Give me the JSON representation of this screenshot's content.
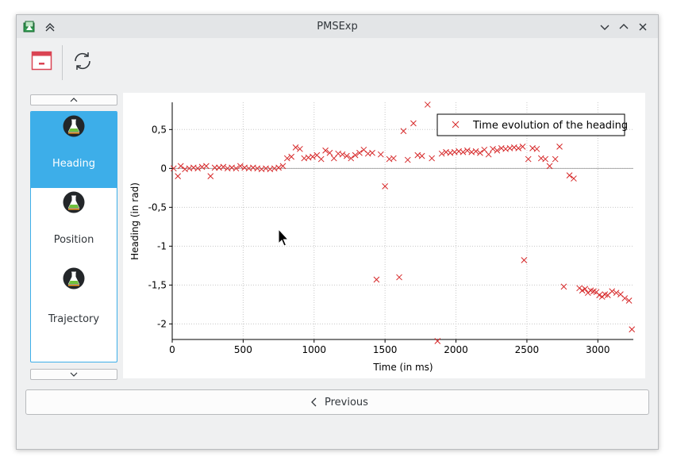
{
  "window": {
    "title": "PMSExp"
  },
  "toolbar": {
    "tools": [
      {
        "icon": "close-window-icon"
      },
      {
        "icon": "refresh-icon"
      }
    ]
  },
  "sidebar": {
    "items": [
      {
        "label": "Heading",
        "icon": "flask-icon",
        "active": true
      },
      {
        "label": "Position",
        "icon": "flask-icon",
        "active": false
      },
      {
        "label": "Trajectory",
        "icon": "flask-icon",
        "active": false
      }
    ]
  },
  "nav": {
    "previous_label": "Previous"
  },
  "colors": {
    "accent": "#3daee9",
    "series": "#d62728"
  },
  "chart_data": {
    "type": "scatter",
    "title": "",
    "xlabel": "Time (in ms)",
    "ylabel": "Heading (in rad)",
    "xlim": [
      0,
      3250
    ],
    "ylim": [
      -2.2,
      0.85
    ],
    "xticks": [
      "0",
      "500",
      "1000",
      "1500",
      "2000",
      "2500",
      "3000"
    ],
    "yticks": [
      "0,5",
      "0",
      "-0,5",
      "-1",
      "-1,5",
      "-2"
    ],
    "grid": true,
    "legend_position": "top-right",
    "series": [
      {
        "name": "Time evolution of the heading",
        "marker": "x",
        "points": [
          [
            10,
            0.0
          ],
          [
            40,
            -0.1
          ],
          [
            60,
            0.03
          ],
          [
            90,
            -0.01
          ],
          [
            120,
            0.0
          ],
          [
            150,
            0.01
          ],
          [
            180,
            0.0
          ],
          [
            210,
            0.02
          ],
          [
            240,
            0.03
          ],
          [
            270,
            -0.1
          ],
          [
            300,
            0.01
          ],
          [
            330,
            0.01
          ],
          [
            360,
            0.02
          ],
          [
            390,
            0.0
          ],
          [
            420,
            0.01
          ],
          [
            450,
            0.0
          ],
          [
            480,
            0.03
          ],
          [
            510,
            0.01
          ],
          [
            540,
            0.0
          ],
          [
            570,
            0.01
          ],
          [
            600,
            0.0
          ],
          [
            630,
            -0.01
          ],
          [
            660,
            0.0
          ],
          [
            690,
            -0.01
          ],
          [
            720,
            0.0
          ],
          [
            750,
            0.01
          ],
          [
            780,
            0.03
          ],
          [
            810,
            0.13
          ],
          [
            840,
            0.15
          ],
          [
            870,
            0.27
          ],
          [
            900,
            0.25
          ],
          [
            930,
            0.13
          ],
          [
            960,
            0.14
          ],
          [
            990,
            0.15
          ],
          [
            1020,
            0.17
          ],
          [
            1050,
            0.12
          ],
          [
            1080,
            0.23
          ],
          [
            1110,
            0.2
          ],
          [
            1140,
            0.13
          ],
          [
            1170,
            0.19
          ],
          [
            1200,
            0.18
          ],
          [
            1230,
            0.16
          ],
          [
            1260,
            0.13
          ],
          [
            1290,
            0.17
          ],
          [
            1320,
            0.2
          ],
          [
            1350,
            0.24
          ],
          [
            1380,
            0.19
          ],
          [
            1410,
            0.2
          ],
          [
            1440,
            -1.43
          ],
          [
            1470,
            0.18
          ],
          [
            1500,
            -0.23
          ],
          [
            1530,
            0.12
          ],
          [
            1560,
            0.13
          ],
          [
            1600,
            -1.4
          ],
          [
            1630,
            0.48
          ],
          [
            1660,
            0.11
          ],
          [
            1700,
            0.58
          ],
          [
            1730,
            0.17
          ],
          [
            1760,
            0.16
          ],
          [
            1800,
            0.82
          ],
          [
            1830,
            0.13
          ],
          [
            1870,
            -2.22
          ],
          [
            1900,
            0.19
          ],
          [
            1930,
            0.21
          ],
          [
            1960,
            0.2
          ],
          [
            1990,
            0.21
          ],
          [
            2020,
            0.22
          ],
          [
            2050,
            0.21
          ],
          [
            2080,
            0.23
          ],
          [
            2110,
            0.21
          ],
          [
            2140,
            0.22
          ],
          [
            2170,
            0.2
          ],
          [
            2200,
            0.24
          ],
          [
            2230,
            0.18
          ],
          [
            2260,
            0.25
          ],
          [
            2290,
            0.23
          ],
          [
            2320,
            0.26
          ],
          [
            2350,
            0.25
          ],
          [
            2380,
            0.26
          ],
          [
            2410,
            0.27
          ],
          [
            2440,
            0.26
          ],
          [
            2470,
            0.28
          ],
          [
            2480,
            -1.18
          ],
          [
            2510,
            0.12
          ],
          [
            2540,
            0.26
          ],
          [
            2570,
            0.25
          ],
          [
            2600,
            0.13
          ],
          [
            2630,
            0.12
          ],
          [
            2660,
            0.03
          ],
          [
            2700,
            0.12
          ],
          [
            2730,
            0.28
          ],
          [
            2760,
            -1.52
          ],
          [
            2800,
            -0.09
          ],
          [
            2830,
            -0.13
          ],
          [
            2870,
            -1.54
          ],
          [
            2890,
            -1.57
          ],
          [
            2910,
            -1.55
          ],
          [
            2930,
            -1.6
          ],
          [
            2950,
            -1.57
          ],
          [
            2970,
            -1.58
          ],
          [
            2990,
            -1.59
          ],
          [
            3010,
            -1.63
          ],
          [
            3030,
            -1.65
          ],
          [
            3050,
            -1.62
          ],
          [
            3070,
            -1.63
          ],
          [
            3100,
            -1.58
          ],
          [
            3130,
            -1.6
          ],
          [
            3160,
            -1.62
          ],
          [
            3190,
            -1.67
          ],
          [
            3220,
            -1.7
          ],
          [
            3240,
            -2.07
          ]
        ]
      }
    ]
  }
}
